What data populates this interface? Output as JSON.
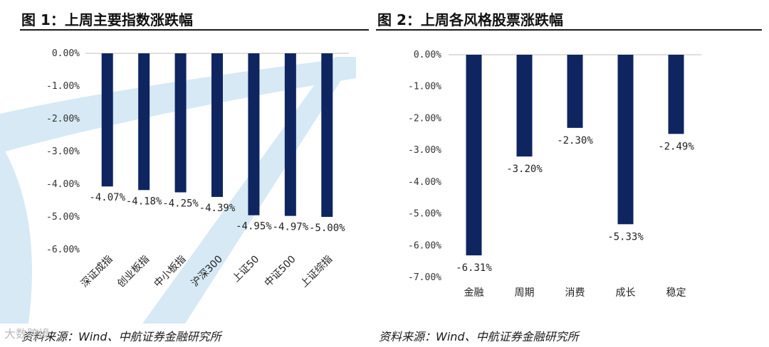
{
  "charts": {
    "left_title": "图 1：上周主要指数涨跌幅",
    "right_title": "图 2：上周各风格股票涨跌幅"
  },
  "footer": {
    "source_left": "资料来源：Wind、中航证券金融研究所",
    "source_right": "资料来源：Wind、中航证券金融研究所",
    "watermark": "大数跨境"
  },
  "colors": {
    "bar": "#0f2560",
    "watermark_shape": "#d6e9f5"
  },
  "chart_data": [
    {
      "type": "bar",
      "title": "图 1：上周主要指数涨跌幅",
      "categories": [
        "深证成指",
        "创业板指",
        "中小板指",
        "沪深300",
        "上证50",
        "中证500",
        "上证综指"
      ],
      "values": [
        -4.07,
        -4.18,
        -4.25,
        -4.39,
        -4.95,
        -4.97,
        -5.0
      ],
      "value_labels": [
        "-4.07%",
        "-4.18%",
        "-4.25%",
        "-4.39%",
        "-4.95%",
        "-4.97%",
        "-5.00%"
      ],
      "yticks": [
        "0.00%",
        "-1.00%",
        "-2.00%",
        "-3.00%",
        "-4.00%",
        "-5.00%",
        "-6.00%"
      ],
      "ylim": [
        -6,
        0
      ],
      "xlabel": "",
      "ylabel": "",
      "grid": false,
      "x_tick_rotation_deg": -45
    },
    {
      "type": "bar",
      "title": "图 2：上周各风格股票涨跌幅",
      "categories": [
        "金融",
        "周期",
        "消费",
        "成长",
        "稳定"
      ],
      "values": [
        -6.31,
        -3.2,
        -2.3,
        -5.33,
        -2.49
      ],
      "value_labels": [
        "-6.31%",
        "-3.20%",
        "-2.30%",
        "-5.33%",
        "-2.49%"
      ],
      "yticks": [
        "0.00%",
        "-1.00%",
        "-2.00%",
        "-3.00%",
        "-4.00%",
        "-5.00%",
        "-6.00%",
        "-7.00%"
      ],
      "ylim": [
        -7,
        0
      ],
      "xlabel": "",
      "ylabel": "",
      "grid": false,
      "x_tick_rotation_deg": 0
    }
  ]
}
